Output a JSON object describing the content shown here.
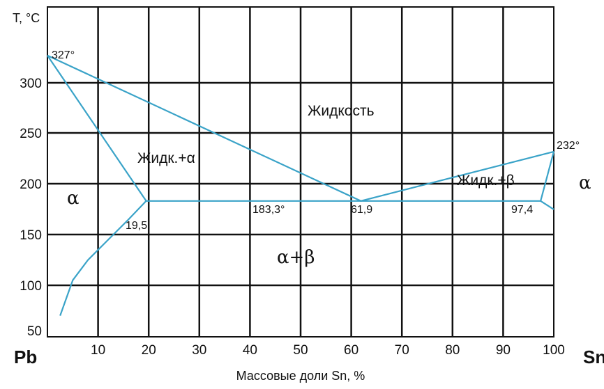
{
  "axis": {
    "y_title": "T, °C",
    "x_title": "Массовые доли Sn, %",
    "left_element": "Pb",
    "right_element": "Sn",
    "x_ticks": [
      "10",
      "20",
      "30",
      "40",
      "50",
      "60",
      "70",
      "80",
      "90",
      "100"
    ],
    "y_ticks": [
      "50",
      "100",
      "150",
      "200",
      "250",
      "300"
    ],
    "x_range": [
      0,
      100
    ],
    "y_range": [
      45,
      337
    ]
  },
  "labels": {
    "pb_melt": "327°",
    "sn_melt": "232°",
    "eutectic_temp": "183,3°",
    "pb_solubility": "19,5",
    "eutectic_comp": "61,9",
    "sn_solubility": "97,4",
    "liquid": "Жидкость",
    "liquid_alpha": "Жидк.+α",
    "liquid_beta": "Жидк.+β",
    "alpha_left": "α",
    "alpha_right": "α",
    "alpha_beta": "α+β"
  },
  "colors": {
    "phase_line": "#3aa3c8",
    "grid": "#111111"
  },
  "chart_data": {
    "type": "line",
    "series": [
      {
        "x": [
          0,
          61.9,
          100
        ],
        "y": [
          327,
          183.3,
          232
        ]
      },
      {
        "x": [
          0,
          19.5
        ],
        "y": [
          327,
          183.3
        ]
      },
      {
        "x": [
          19.5,
          97.4
        ],
        "y": [
          183.3,
          183.3
        ]
      },
      {
        "x": [
          2.5,
          5,
          8,
          12,
          16,
          19.5
        ],
        "y": [
          70,
          105,
          125,
          145,
          165,
          183.3
        ]
      },
      {
        "x": [
          97.4,
          100
        ],
        "y": [
          183.3,
          232
        ]
      },
      {
        "x": [
          97.4,
          100
        ],
        "y": [
          183.3,
          175
        ]
      }
    ]
  }
}
